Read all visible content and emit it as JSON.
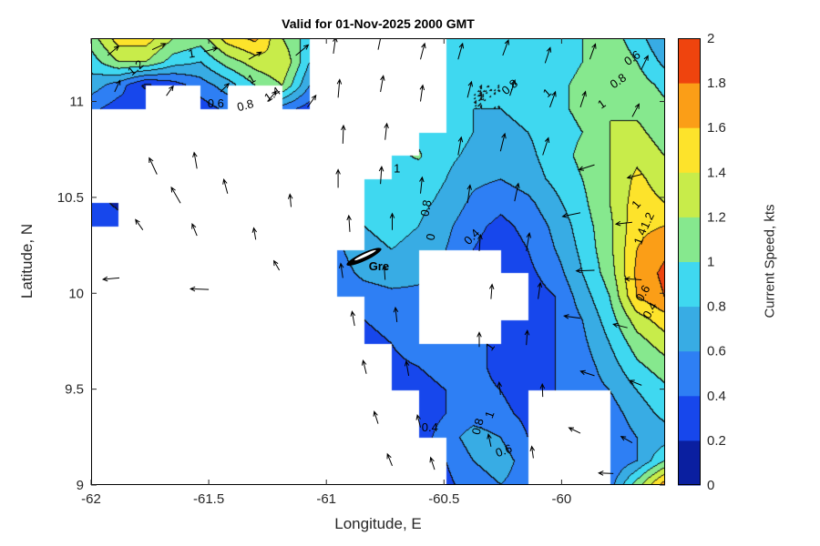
{
  "chart_data": {
    "type": "heatmap",
    "title": "Valid for 01-Nov-2025 2000 GMT",
    "xlabel": "Longitude, E",
    "ylabel": "Latitude, N",
    "x_range": [
      -62,
      -59.56
    ],
    "y_range": [
      9,
      11.33
    ],
    "x_ticks": [
      -62,
      -61.5,
      -61,
      -60.5,
      -60
    ],
    "y_ticks": [
      9,
      9.5,
      10,
      10.5,
      11
    ],
    "colorbar": {
      "label": "Current Speed, kts",
      "ticks": [
        0,
        0.2,
        0.4,
        0.6,
        0.8,
        1,
        1.2,
        1.4,
        1.6,
        1.8,
        2
      ],
      "band_colors": [
        "#0a1fa0",
        "#1747ec",
        "#2e7ff4",
        "#38ace4",
        "#3fd8f0",
        "#86e88e",
        "#c8ec4a",
        "#fde32b",
        "#fb9e17",
        "#ef440e"
      ],
      "contour_line_color": "#0d0d0d"
    },
    "grid": {
      "ncols": 22,
      "nrows": 20,
      "values": [
        [
          1.1,
          1.5,
          1.5,
          1.2,
          1.1,
          1.5,
          1.65,
          1.2,
          0.9,
          null,
          null,
          null,
          null,
          0.9,
          0.9,
          0.9,
          0.85,
          0.9,
          1.0,
          1.1,
          0.9,
          0.6
        ],
        [
          0.9,
          1.2,
          1.2,
          0.9,
          0.8,
          1.1,
          1.3,
          1.4,
          0.8,
          null,
          null,
          null,
          null,
          0.85,
          0.85,
          0.8,
          0.85,
          0.9,
          1.0,
          1.15,
          1.0,
          0.75
        ],
        [
          0.7,
          0.5,
          0.15,
          0.3,
          0.5,
          0.7,
          1.0,
          1.2,
          0.6,
          null,
          null,
          null,
          null,
          0.8,
          0.8,
          0.8,
          0.85,
          0.95,
          1.05,
          1.15,
          1.1,
          0.95
        ],
        [
          0.45,
          0.3,
          0.4,
          null,
          0.3,
          0.45,
          null,
          0.5,
          0.3,
          null,
          null,
          null,
          null,
          0.85,
          0.8,
          0.8,
          0.85,
          0.95,
          1.05,
          1.2,
          1.15,
          1.05
        ],
        [
          null,
          null,
          null,
          null,
          null,
          null,
          null,
          null,
          null,
          null,
          null,
          null,
          0.95,
          0.9,
          0.8,
          0.75,
          0.8,
          0.9,
          1.0,
          1.2,
          1.25,
          1.1
        ],
        [
          null,
          null,
          null,
          null,
          null,
          null,
          null,
          null,
          null,
          null,
          null,
          0.95,
          1.02,
          0.85,
          0.75,
          0.7,
          0.75,
          0.9,
          1.05,
          1.2,
          1.35,
          1.2
        ],
        [
          null,
          null,
          null,
          null,
          null,
          null,
          null,
          null,
          null,
          null,
          0.9,
          1.0,
          0.9,
          0.8,
          0.65,
          0.6,
          0.7,
          0.85,
          1.0,
          1.2,
          1.45,
          1.3
        ],
        [
          0.3,
          0.15,
          null,
          null,
          null,
          null,
          null,
          null,
          null,
          null,
          0.85,
          0.9,
          0.85,
          0.75,
          0.55,
          0.45,
          0.55,
          0.75,
          0.95,
          1.2,
          1.5,
          1.4
        ],
        [
          0.4,
          0.3,
          null,
          null,
          null,
          null,
          null,
          null,
          null,
          null,
          0.8,
          0.85,
          0.8,
          0.65,
          0.45,
          0.35,
          0.45,
          0.65,
          0.9,
          1.15,
          1.55,
          1.6
        ],
        [
          null,
          null,
          null,
          null,
          null,
          null,
          null,
          null,
          null,
          0.55,
          0.75,
          0.8,
          0.75,
          0.6,
          0.4,
          0.3,
          0.4,
          0.6,
          0.85,
          1.15,
          1.6,
          1.75
        ],
        [
          null,
          null,
          null,
          null,
          null,
          null,
          null,
          null,
          null,
          0.5,
          0.65,
          0.7,
          0.65,
          null,
          null,
          0.35,
          0.35,
          0.5,
          0.8,
          1.1,
          1.65,
          1.85
        ],
        [
          null,
          null,
          null,
          null,
          null,
          null,
          null,
          null,
          null,
          0.45,
          0.5,
          0.55,
          0.55,
          null,
          null,
          null,
          0.3,
          0.4,
          0.7,
          1.0,
          1.6,
          1.8
        ],
        [
          null,
          null,
          null,
          null,
          null,
          null,
          null,
          null,
          null,
          null,
          0.4,
          0.45,
          0.5,
          null,
          null,
          0.3,
          0.3,
          0.4,
          0.6,
          0.9,
          1.3,
          1.5
        ],
        [
          null,
          null,
          null,
          null,
          null,
          null,
          null,
          null,
          null,
          null,
          0.35,
          0.4,
          0.5,
          0.5,
          0.45,
          0.35,
          0.3,
          0.4,
          0.55,
          0.8,
          1.1,
          1.3
        ],
        [
          null,
          null,
          null,
          null,
          null,
          null,
          null,
          null,
          null,
          null,
          null,
          0.35,
          0.4,
          0.45,
          0.45,
          0.35,
          0.3,
          0.4,
          0.5,
          0.7,
          0.95,
          1.1
        ],
        [
          null,
          null,
          null,
          null,
          null,
          null,
          null,
          null,
          null,
          null,
          null,
          0.3,
          0.35,
          0.4,
          0.45,
          0.4,
          0.3,
          0.4,
          0.5,
          0.6,
          0.8,
          0.95
        ],
        [
          null,
          null,
          null,
          null,
          null,
          null,
          null,
          null,
          null,
          null,
          null,
          null,
          0.3,
          0.4,
          0.5,
          0.45,
          0.35,
          null,
          null,
          0.5,
          0.7,
          0.85
        ],
        [
          null,
          null,
          null,
          null,
          null,
          null,
          null,
          null,
          null,
          null,
          null,
          null,
          0.3,
          0.5,
          0.7,
          0.6,
          0.4,
          null,
          null,
          0.45,
          0.6,
          0.7
        ],
        [
          null,
          null,
          null,
          null,
          null,
          null,
          null,
          null,
          null,
          null,
          null,
          null,
          null,
          0.4,
          0.6,
          0.7,
          0.5,
          null,
          null,
          0.4,
          0.6,
          1.0
        ],
        [
          null,
          null,
          null,
          null,
          null,
          null,
          null,
          null,
          null,
          null,
          null,
          null,
          null,
          0.35,
          0.5,
          0.6,
          0.5,
          0.4,
          0.4,
          0.5,
          1.1,
          1.7
        ]
      ]
    },
    "arrows": [
      [
        -61.93,
        11.24,
        40,
        16
      ],
      [
        -61.74,
        11.27,
        25,
        16
      ],
      [
        -61.52,
        11.26,
        15,
        15
      ],
      [
        -61.33,
        11.22,
        30,
        16
      ],
      [
        -61.13,
        11.24,
        40,
        18
      ],
      [
        -61.9,
        11.05,
        65,
        14
      ],
      [
        -61.68,
        11.03,
        55,
        13
      ],
      [
        -61.45,
        11.05,
        45,
        13
      ],
      [
        -61.25,
        11.0,
        50,
        15
      ],
      [
        -61.08,
        10.97,
        55,
        16
      ],
      [
        -61.72,
        10.62,
        115,
        20
      ],
      [
        -61.55,
        10.65,
        100,
        18
      ],
      [
        -61.62,
        10.47,
        120,
        20
      ],
      [
        -61.42,
        10.52,
        105,
        16
      ],
      [
        -61.78,
        10.33,
        125,
        14
      ],
      [
        -61.55,
        10.3,
        112,
        14
      ],
      [
        -61.3,
        10.28,
        100,
        13
      ],
      [
        -61.88,
        10.08,
        185,
        18
      ],
      [
        -61.5,
        10.02,
        178,
        20
      ],
      [
        -61.15,
        10.45,
        95,
        14
      ],
      [
        -61.2,
        10.12,
        120,
        12
      ],
      [
        -60.97,
        11.25,
        82,
        18
      ],
      [
        -60.78,
        11.27,
        78,
        18
      ],
      [
        -60.6,
        11.22,
        75,
        18
      ],
      [
        -60.95,
        11.02,
        85,
        20
      ],
      [
        -60.77,
        11.05,
        80,
        18
      ],
      [
        -60.6,
        11.0,
        82,
        18
      ],
      [
        -60.93,
        10.78,
        88,
        20
      ],
      [
        -60.75,
        10.8,
        84,
        18
      ],
      [
        -60.95,
        10.55,
        90,
        20
      ],
      [
        -60.77,
        10.57,
        86,
        19
      ],
      [
        -60.6,
        10.52,
        84,
        18
      ],
      [
        -60.9,
        10.32,
        94,
        18
      ],
      [
        -60.72,
        10.33,
        90,
        18
      ],
      [
        -60.93,
        10.08,
        98,
        16
      ],
      [
        -60.75,
        10.07,
        94,
        16
      ],
      [
        -60.88,
        9.83,
        100,
        16
      ],
      [
        -60.7,
        9.85,
        96,
        16
      ],
      [
        -60.83,
        9.58,
        104,
        15
      ],
      [
        -60.65,
        9.57,
        100,
        16
      ],
      [
        -60.78,
        9.32,
        108,
        14
      ],
      [
        -60.6,
        9.3,
        104,
        14
      ],
      [
        -60.72,
        9.1,
        112,
        14
      ],
      [
        -60.54,
        9.08,
        108,
        14
      ],
      [
        -60.44,
        11.22,
        74,
        18
      ],
      [
        -60.25,
        11.24,
        70,
        18
      ],
      [
        -60.07,
        11.2,
        72,
        18
      ],
      [
        -60.4,
        11.02,
        76,
        18
      ],
      [
        -60.22,
        11.03,
        72,
        18
      ],
      [
        -60.05,
        10.97,
        70,
        18
      ],
      [
        -60.44,
        10.72,
        80,
        20
      ],
      [
        -60.26,
        10.74,
        76,
        20
      ],
      [
        -60.08,
        10.72,
        72,
        20
      ],
      [
        -60.4,
        10.47,
        82,
        20
      ],
      [
        -60.2,
        10.48,
        78,
        20
      ],
      [
        -60.35,
        10.22,
        86,
        18
      ],
      [
        -60.15,
        10.22,
        80,
        20
      ],
      [
        -60.3,
        9.97,
        86,
        16
      ],
      [
        -60.1,
        9.97,
        82,
        18
      ],
      [
        -60.35,
        9.72,
        90,
        16
      ],
      [
        -60.15,
        9.73,
        86,
        16
      ],
      [
        -60.26,
        9.47,
        96,
        14
      ],
      [
        -60.08,
        9.46,
        92,
        14
      ],
      [
        -60.3,
        9.2,
        102,
        14
      ],
      [
        -60.12,
        9.14,
        98,
        13
      ],
      [
        -59.88,
        11.22,
        70,
        18
      ],
      [
        -59.66,
        11.17,
        64,
        16
      ],
      [
        -59.92,
        10.97,
        72,
        18
      ],
      [
        -59.7,
        10.92,
        62,
        16
      ],
      [
        -59.86,
        10.67,
        198,
        18
      ],
      [
        -59.66,
        10.62,
        194,
        16
      ],
      [
        -59.92,
        10.42,
        192,
        20
      ],
      [
        -59.7,
        10.37,
        186,
        18
      ],
      [
        -59.86,
        10.12,
        182,
        20
      ],
      [
        -59.66,
        10.07,
        176,
        18
      ],
      [
        -59.92,
        9.87,
        172,
        18
      ],
      [
        -59.72,
        9.82,
        166,
        16
      ],
      [
        -59.86,
        9.57,
        162,
        16
      ],
      [
        -59.66,
        9.52,
        158,
        14
      ],
      [
        -59.92,
        9.27,
        154,
        14
      ],
      [
        -59.7,
        9.22,
        150,
        14
      ],
      [
        -59.78,
        9.06,
        178,
        16
      ]
    ],
    "contour_labels": [
      {
        "t": "1.2",
        "x": -61.8,
        "y": 11.16,
        "r": -40
      },
      {
        "t": "1",
        "x": -61.57,
        "y": 11.23,
        "r": -10
      },
      {
        "t": "1",
        "x": -61.31,
        "y": 11.1,
        "r": -30
      },
      {
        "t": "1.4",
        "x": -61.22,
        "y": 11.02,
        "r": -35
      },
      {
        "t": "0.6",
        "x": -61.47,
        "y": 10.97,
        "r": 0
      },
      {
        "t": "0.8",
        "x": -61.34,
        "y": 10.96,
        "r": -15
      },
      {
        "t": "1",
        "x": -60.7,
        "y": 10.63,
        "r": 0
      },
      {
        "t": "0.8",
        "x": -60.21,
        "y": 11.06,
        "r": -40
      },
      {
        "t": "1",
        "x": -60.05,
        "y": 11.03,
        "r": -42
      },
      {
        "t": "0.6",
        "x": -59.69,
        "y": 11.21,
        "r": -35
      },
      {
        "t": "0.8",
        "x": -59.75,
        "y": 11.09,
        "r": -35
      },
      {
        "t": "1",
        "x": -59.82,
        "y": 10.97,
        "r": -35
      },
      {
        "t": "0.8",
        "x": -60.56,
        "y": 10.44,
        "r": -80
      },
      {
        "t": "0",
        "x": -60.54,
        "y": 10.29,
        "r": -80
      },
      {
        "t": "0.4",
        "x": -60.37,
        "y": 10.28,
        "r": -45
      },
      {
        "t": "1",
        "x": -60.29,
        "y": 9.71,
        "r": -55
      },
      {
        "t": "0.4",
        "x": -60.56,
        "y": 9.28,
        "r": 0
      },
      {
        "t": "0.8",
        "x": -60.34,
        "y": 9.3,
        "r": -75
      },
      {
        "t": "1",
        "x": -60.29,
        "y": 9.36,
        "r": -70
      },
      {
        "t": "0.6",
        "x": -60.24,
        "y": 9.16,
        "r": -20
      },
      {
        "t": "1",
        "x": -59.67,
        "y": 10.45,
        "r": -50
      },
      {
        "t": "1.2",
        "x": -59.62,
        "y": 10.37,
        "r": -65
      },
      {
        "t": "1.4",
        "x": -59.65,
        "y": 10.29,
        "r": -70
      },
      {
        "t": "0.6",
        "x": -59.64,
        "y": 9.99,
        "r": -60
      },
      {
        "t": "0.4",
        "x": -59.61,
        "y": 9.9,
        "r": -60
      }
    ],
    "island": {
      "label": "Gre",
      "label_x": -60.82,
      "label_y": 10.12,
      "x": -60.84,
      "y": 10.19,
      "rot": -25
    }
  }
}
